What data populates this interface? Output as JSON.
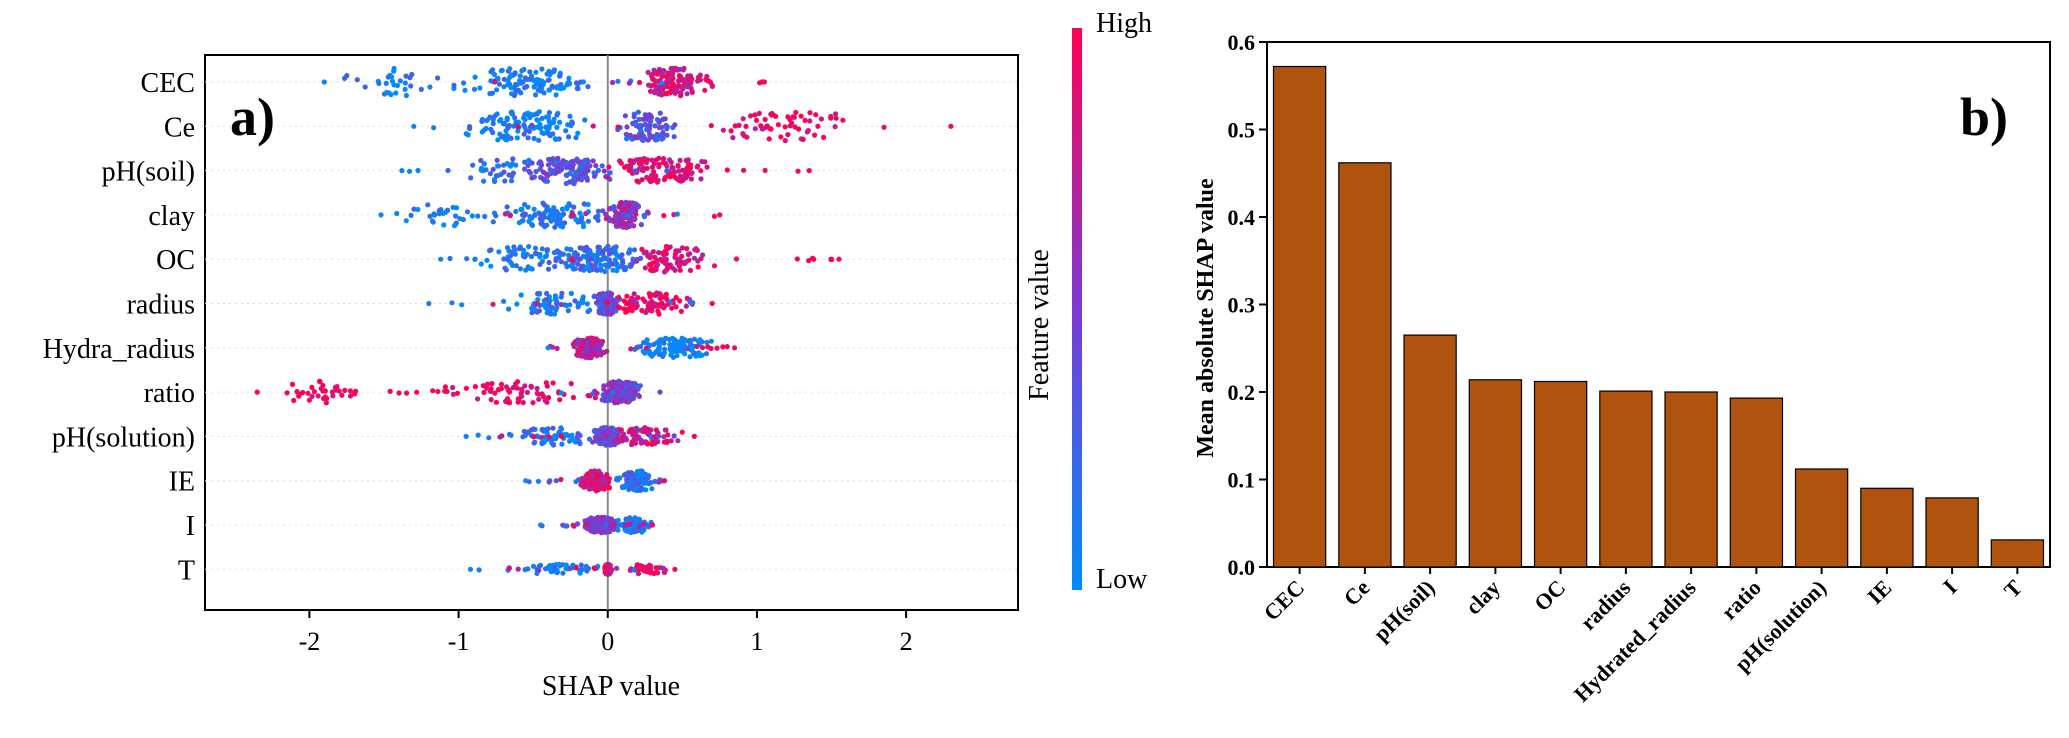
{
  "chart_data": [
    {
      "type": "scatter",
      "subtype": "shap-beeswarm",
      "panel_label": "a)",
      "xlabel": "SHAP value",
      "xlim": [
        -2.7,
        2.75
      ],
      "xticks": [
        -2,
        -1,
        0,
        1,
        2
      ],
      "xtick_labels": [
        "-2",
        "-1",
        "0",
        "1",
        "2"
      ],
      "features": [
        "CEC",
        "Ce",
        "pH(soil)",
        "clay",
        "OC",
        "radius",
        "Hydra_radius",
        "ratio",
        "pH(solution)",
        "IE",
        "I",
        "T"
      ],
      "feature_ranges": [
        {
          "feature": "CEC",
          "min": -1.9,
          "max": 1.05
        },
        {
          "feature": "Ce",
          "min": -1.3,
          "max": 2.3
        },
        {
          "feature": "pH(soil)",
          "min": -1.38,
          "max": 1.35
        },
        {
          "feature": "clay",
          "min": -1.52,
          "max": 0.75
        },
        {
          "feature": "OC",
          "min": -1.12,
          "max": 1.55
        },
        {
          "feature": "radius",
          "min": -1.2,
          "max": 0.7
        },
        {
          "feature": "Hydra_radius",
          "min": -0.4,
          "max": 0.85
        },
        {
          "feature": "ratio",
          "min": -2.35,
          "max": 0.35
        },
        {
          "feature": "pH(solution)",
          "min": -0.95,
          "max": 0.58
        },
        {
          "feature": "IE",
          "min": -0.55,
          "max": 0.38
        },
        {
          "feature": "I",
          "min": -0.45,
          "max": 0.3
        },
        {
          "feature": "T",
          "min": -0.92,
          "max": 0.45
        }
      ],
      "colorbar": {
        "label": "Feature value",
        "high": "High",
        "low": "Low",
        "high_color": "#ff0052",
        "low_color": "#008bfb"
      }
    },
    {
      "type": "bar",
      "panel_label": "b)",
      "ylabel": "Mean absolute SHAP value",
      "xlabel": "",
      "ylim": [
        0,
        0.6
      ],
      "yticks": [
        0.0,
        0.1,
        0.2,
        0.3,
        0.4,
        0.5,
        0.6
      ],
      "ytick_labels": [
        "0.0",
        "0.1",
        "0.2",
        "0.3",
        "0.4",
        "0.5",
        "0.6"
      ],
      "categories": [
        "CEC",
        "Ce",
        "pH(soil)",
        "clay",
        "OC",
        "radius",
        "Hydrated_radius",
        "ratio",
        "pH(solution)",
        "IE",
        "I",
        "T"
      ],
      "values": [
        0.572,
        0.462,
        0.265,
        0.214,
        0.212,
        0.201,
        0.2,
        0.193,
        0.112,
        0.09,
        0.079,
        0.031
      ],
      "bar_color": "#b0530f"
    }
  ]
}
